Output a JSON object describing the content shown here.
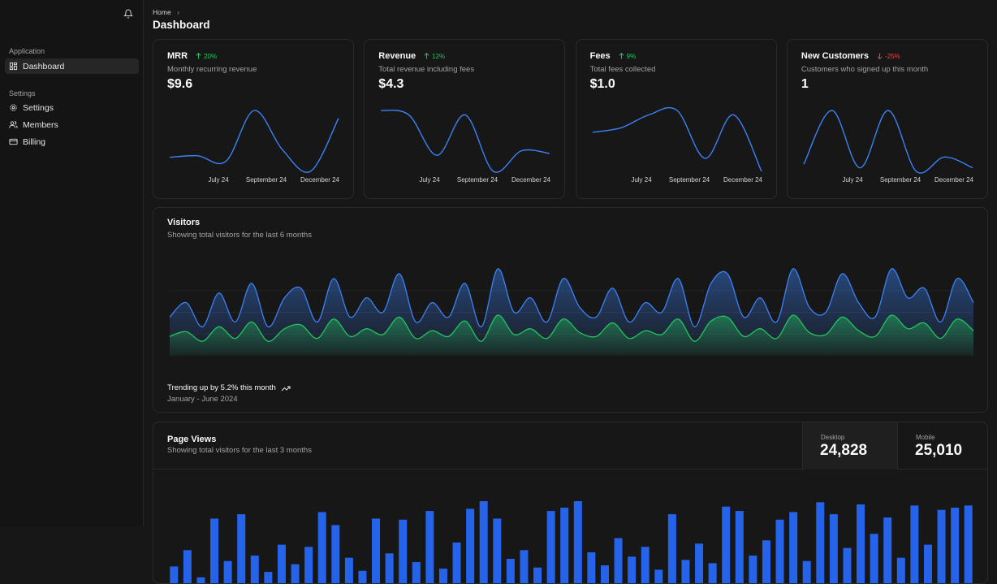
{
  "sidebar": {
    "groups": [
      {
        "label": "Application",
        "items": [
          "Dashboard"
        ]
      },
      {
        "label": "Settings",
        "items": [
          "Settings",
          "Members",
          "Billing"
        ]
      }
    ]
  },
  "header": {
    "breadcrumb": "Home",
    "title": "Dashboard"
  },
  "cards": [
    {
      "title": "MRR",
      "change": "20%",
      "trend": "up",
      "description": "Monthly recurring revenue",
      "value": "$9.6",
      "chart": {
        "type": "line",
        "color": "#3b82f6",
        "x_labels": [
          "July 24",
          "September 24",
          "December 24"
        ],
        "values": [
          3,
          3.2,
          2.5,
          9,
          4,
          1.2,
          8
        ]
      }
    },
    {
      "title": "Revenue",
      "change": "12%",
      "trend": "up",
      "description": "Total revenue including fees",
      "value": "$4.3",
      "chart": {
        "type": "line",
        "color": "#3b82f6",
        "x_labels": [
          "July 24",
          "September 24",
          "December 24"
        ],
        "values": [
          8,
          7.5,
          3,
          7.5,
          1.2,
          3.5,
          3.2
        ]
      }
    },
    {
      "title": "Fees",
      "change": "9%",
      "trend": "up",
      "description": "Total fees collected",
      "value": "$1.0",
      "chart": {
        "type": "line",
        "color": "#3b82f6",
        "x_labels": [
          "July 24",
          "September 24",
          "December 24"
        ],
        "values": [
          5,
          5.5,
          7,
          7.5,
          2,
          7,
          0.5
        ]
      }
    },
    {
      "title": "New Customers",
      "change": "-25%",
      "trend": "down",
      "description": "Customers who signed up this month",
      "value": "1",
      "chart": {
        "type": "line",
        "color": "#3b82f6",
        "x_labels": [
          "July 24",
          "September 24",
          "December 24"
        ],
        "values": [
          1.5,
          9,
          1,
          9,
          0.5,
          2.5,
          1
        ]
      }
    }
  ],
  "visitors": {
    "title": "Visitors",
    "description": "Showing total visitors for the last 6 months",
    "footer": "Trending up by 5.2% this month",
    "period": "January - June 2024",
    "chart": {
      "type": "area",
      "series": [
        {
          "color": "#3b82f6",
          "values": [
            40,
            55,
            30,
            65,
            35,
            75,
            30,
            60,
            70,
            35,
            80,
            40,
            60,
            45,
            85,
            35,
            55,
            40,
            75,
            30,
            90,
            45,
            60,
            35,
            80,
            50,
            40,
            70,
            35,
            55,
            45,
            80,
            30,
            75,
            85,
            40,
            60,
            35,
            90,
            50,
            45,
            85,
            55,
            40,
            90,
            60,
            70,
            35,
            80,
            55
          ]
        },
        {
          "color": "#22c55e",
          "values": [
            20,
            25,
            15,
            30,
            18,
            35,
            15,
            28,
            32,
            18,
            38,
            20,
            28,
            22,
            40,
            18,
            26,
            20,
            36,
            15,
            42,
            22,
            28,
            18,
            38,
            24,
            20,
            34,
            18,
            26,
            22,
            38,
            15,
            36,
            40,
            20,
            28,
            18,
            42,
            24,
            22,
            40,
            26,
            20,
            42,
            28,
            34,
            18,
            38,
            26
          ]
        }
      ]
    }
  },
  "page_views": {
    "title": "Page Views",
    "description": "Showing total visitors for the last 3 months",
    "stats": [
      {
        "label": "Desktop",
        "value": "24,828"
      },
      {
        "label": "Mobile",
        "value": "25,010"
      }
    ],
    "chart": {
      "type": "bar",
      "color": "#2563eb",
      "values": [
        40,
        55,
        30,
        84,
        45,
        88,
        50,
        35,
        60,
        42,
        58,
        90,
        78,
        48,
        36,
        84,
        52,
        83,
        44,
        91,
        38,
        62,
        93,
        100,
        84,
        47,
        55,
        39,
        91,
        94,
        100,
        53,
        41,
        66,
        49,
        58,
        37,
        88,
        46,
        61,
        43,
        95,
        91,
        50,
        64,
        83,
        90,
        45,
        99,
        88,
        57,
        97,
        70,
        85,
        48,
        96,
        60,
        92,
        94,
        96
      ]
    }
  }
}
